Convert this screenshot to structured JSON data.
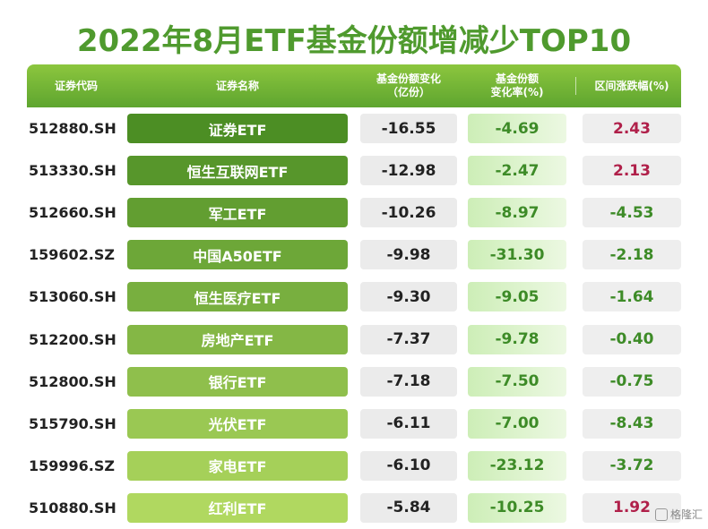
{
  "title": "2022年8月ETF基金份额增减少TOP10",
  "headers": {
    "code": "证券代码",
    "name": "证券名称",
    "change": [
      "基金份额变化",
      "（亿份）"
    ],
    "rate": [
      "基金份额",
      "变化率(%)"
    ],
    "perf": "区间涨跌幅(%)"
  },
  "rows": [
    {
      "code": "512880.SH",
      "name": "证券ETF",
      "change": "-16.55",
      "rate": "-4.69",
      "perf": "2.43",
      "perf_sign": "pos"
    },
    {
      "code": "513330.SH",
      "name": "恒生互联网ETF",
      "change": "-12.98",
      "rate": "-2.47",
      "perf": "2.13",
      "perf_sign": "pos"
    },
    {
      "code": "512660.SH",
      "name": "军工ETF",
      "change": "-10.26",
      "rate": "-8.97",
      "perf": "-4.53",
      "perf_sign": "neg"
    },
    {
      "code": "159602.SZ",
      "name": "中国A50ETF",
      "change": "-9.98",
      "rate": "-31.30",
      "perf": "-2.18",
      "perf_sign": "neg"
    },
    {
      "code": "513060.SH",
      "name": "恒生医疗ETF",
      "change": "-9.30",
      "rate": "-9.05",
      "perf": "-1.64",
      "perf_sign": "neg"
    },
    {
      "code": "512200.SH",
      "name": "房地产ETF",
      "change": "-7.37",
      "rate": "-9.78",
      "perf": "-0.40",
      "perf_sign": "neg"
    },
    {
      "code": "512800.SH",
      "name": "银行ETF",
      "change": "-7.18",
      "rate": "-7.50",
      "perf": "-0.75",
      "perf_sign": "neg"
    },
    {
      "code": "515790.SH",
      "name": "光伏ETF",
      "change": "-6.11",
      "rate": "-7.00",
      "perf": "-8.43",
      "perf_sign": "neg"
    },
    {
      "code": "159996.SZ",
      "name": "家电ETF",
      "change": "-6.10",
      "rate": "-23.12",
      "perf": "-3.72",
      "perf_sign": "neg"
    },
    {
      "code": "510880.SH",
      "name": "红利ETF",
      "change": "-5.84",
      "rate": "-10.25",
      "perf": "1.92",
      "perf_sign": "pos"
    }
  ],
  "watermark": "格隆汇",
  "colors": {
    "name_gradient": [
      "#4c8e24",
      "#b0d860"
    ],
    "rate_gradient": [
      "#cdeeb7",
      "#ecf8e2"
    ],
    "positive": "#b0204a",
    "negative": "#3d8b27"
  }
}
